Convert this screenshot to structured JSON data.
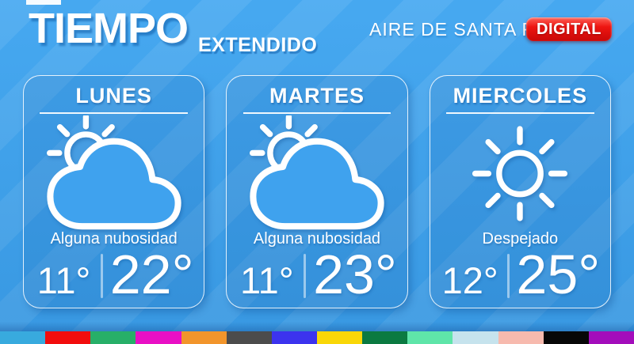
{
  "header": {
    "title": "TIEMPO",
    "subtitle": "EXTENDIDO",
    "brand": "AIRE DE SANTA FE",
    "badge": "DIGITAL"
  },
  "cards": [
    {
      "day": "LUNES",
      "icon": "sun-behind-cloud",
      "description": "Alguna nubosidad",
      "temp_min": "11°",
      "temp_max": "22°"
    },
    {
      "day": "MARTES",
      "icon": "sun-behind-cloud",
      "description": "Alguna nubosidad",
      "temp_min": "11°",
      "temp_max": "23°"
    },
    {
      "day": "MIERCOLES",
      "icon": "sun",
      "description": "Despejado",
      "temp_min": "12°",
      "temp_max": "25°"
    }
  ],
  "colors": {
    "background": "#3fa5f0",
    "badge_red": "#e01010",
    "strip": [
      "#38aade",
      "#f20d0d",
      "#27af68",
      "#e90fc5",
      "#f2952b",
      "#4c4c4c",
      "#3c33ee",
      "#f9d707",
      "#0b7a41",
      "#5fe5a9",
      "#c6e3ed",
      "#f7baae",
      "#070707",
      "#a30dbb"
    ]
  }
}
